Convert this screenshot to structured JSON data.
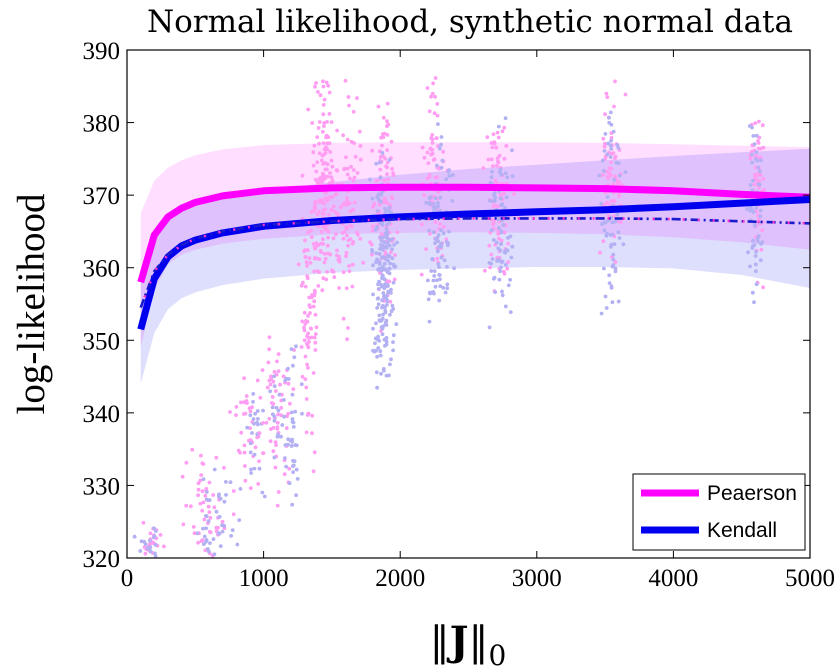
{
  "chart_data": {
    "type": "line",
    "title": "Normal likelihood, synthetic normal data",
    "ylabel": "log-likelihood",
    "xlabel": {
      "norm_symbol": "‖",
      "variable": "J",
      "subscript": "0"
    },
    "xlim": [
      0,
      5000
    ],
    "ylim": [
      320,
      390
    ],
    "xticks": [
      0,
      1000,
      2000,
      3000,
      4000,
      5000
    ],
    "yticks": [
      320,
      330,
      340,
      350,
      360,
      370,
      380,
      390
    ],
    "grid": false,
    "legend_position": "bottom-right",
    "series": [
      {
        "name": "Peaerson",
        "color": "#ff00ff",
        "x": [
          100,
          200,
          300,
          400,
          500,
          700,
          1000,
          1500,
          2000,
          2500,
          3000,
          3500,
          4000,
          4500,
          5000
        ],
        "y": [
          358,
          364.5,
          367,
          368.2,
          369,
          369.9,
          370.6,
          371,
          371.1,
          371.1,
          371,
          370.9,
          370.6,
          370.1,
          369.7
        ],
        "band_upper": [
          367.5,
          372,
          373.8,
          374.8,
          375.5,
          376.3,
          376.9,
          377.2,
          377.3,
          377.3,
          377.3,
          377.2,
          377,
          376.8,
          376.6
        ],
        "band_lower": [
          349,
          357,
          360.5,
          361.8,
          362.5,
          363.3,
          364,
          364.6,
          364.8,
          364.9,
          364.8,
          364.6,
          364.2,
          363.5,
          362.5
        ]
      },
      {
        "name": "Kendall",
        "color": "#0000ee",
        "x": [
          100,
          200,
          300,
          400,
          500,
          700,
          1000,
          1500,
          2000,
          2500,
          3000,
          3500,
          4000,
          4500,
          5000
        ],
        "y": [
          351.5,
          358.5,
          361.5,
          363,
          363.8,
          364.8,
          365.7,
          366.5,
          367,
          367.4,
          367.7,
          368,
          368.4,
          368.9,
          369.4
        ],
        "band_upper": [
          358,
          364,
          366.5,
          367.7,
          368.6,
          369.6,
          370.6,
          371.8,
          372.8,
          373.6,
          374.2,
          374.8,
          375.4,
          375.9,
          376.4
        ],
        "band_lower": [
          344,
          351,
          354.3,
          355.8,
          356.6,
          357.6,
          358.5,
          359.3,
          359.7,
          359.9,
          360.1,
          360.1,
          359.9,
          359,
          357.2
        ]
      },
      {
        "color": "#1a1acd",
        "accent_color": "#ff33cc",
        "style": "dash-dot",
        "x": [
          100,
          200,
          300,
          400,
          500,
          700,
          1000,
          1500,
          2000,
          2500,
          3000,
          3500,
          4000,
          4500,
          5000
        ],
        "y": [
          354.5,
          359.5,
          361.8,
          363.1,
          364,
          365,
          365.9,
          366.4,
          366.7,
          366.8,
          366.8,
          366.8,
          366.7,
          366.4,
          366.1
        ]
      }
    ],
    "scatter_clusters": [
      {
        "color": "#ff9df2",
        "x_center": 180,
        "x_spread": 130,
        "y_center": 321.5,
        "y_spread": 1.5,
        "count": 25
      },
      {
        "color": "#b3b0f3",
        "x_center": 160,
        "x_spread": 110,
        "y_center": 321.5,
        "y_spread": 1.5,
        "count": 20
      },
      {
        "color": "#ff9df2",
        "x_center": 580,
        "x_spread": 150,
        "y_center": 326.5,
        "y_spread": 3.5,
        "count": 55
      },
      {
        "color": "#b3b0f3",
        "x_center": 650,
        "x_spread": 160,
        "y_center": 325,
        "y_spread": 3.5,
        "count": 50
      },
      {
        "color": "#ff9df2",
        "x_center": 880,
        "x_spread": 110,
        "y_center": 337.5,
        "y_spread": 4.5,
        "count": 40
      },
      {
        "color": "#b3b0f3",
        "x_center": 950,
        "x_spread": 80,
        "y_center": 337.5,
        "y_spread": 3.5,
        "count": 25
      },
      {
        "color": "#ff9df2",
        "x_center": 1100,
        "x_spread": 100,
        "y_center": 340,
        "y_spread": 6,
        "count": 60
      },
      {
        "color": "#b3b0f3",
        "x_center": 1180,
        "x_spread": 110,
        "y_center": 338,
        "y_spread": 5,
        "count": 55
      },
      {
        "color": "#ff9df2",
        "x_center": 1330,
        "x_spread": 60,
        "y_center": 352,
        "y_spread": 8,
        "count": 80
      },
      {
        "color": "#ff9df2",
        "x_center": 1440,
        "x_spread": 90,
        "y_center": 370,
        "y_spread": 7,
        "count": 160
      },
      {
        "color": "#ff9df2",
        "x_center": 1620,
        "x_spread": 90,
        "y_center": 368,
        "y_spread": 7,
        "count": 90
      },
      {
        "color": "#ff9df2",
        "x_center": 1880,
        "x_spread": 80,
        "y_center": 369,
        "y_spread": 7,
        "count": 110
      },
      {
        "color": "#b3b0f3",
        "x_center": 1880,
        "x_spread": 80,
        "y_center": 359,
        "y_spread": 7,
        "count": 200
      },
      {
        "color": "#ff9df2",
        "x_center": 2250,
        "x_spread": 80,
        "y_center": 372,
        "y_spread": 6,
        "count": 80
      },
      {
        "color": "#b3b0f3",
        "x_center": 2280,
        "x_spread": 90,
        "y_center": 367,
        "y_spread": 6,
        "count": 90
      },
      {
        "color": "#ff9df2",
        "x_center": 2720,
        "x_spread": 90,
        "y_center": 369,
        "y_spread": 6,
        "count": 80
      },
      {
        "color": "#b3b0f3",
        "x_center": 2720,
        "x_spread": 90,
        "y_center": 365,
        "y_spread": 6,
        "count": 80
      },
      {
        "color": "#ff9df2",
        "x_center": 3550,
        "x_spread": 80,
        "y_center": 372,
        "y_spread": 6,
        "count": 70
      },
      {
        "color": "#b3b0f3",
        "x_center": 3550,
        "x_spread": 80,
        "y_center": 368,
        "y_spread": 6,
        "count": 70
      },
      {
        "color": "#ff9df2",
        "x_center": 4620,
        "x_spread": 50,
        "y_center": 370,
        "y_spread": 6,
        "count": 60
      },
      {
        "color": "#b3b0f3",
        "x_center": 4600,
        "x_spread": 50,
        "y_center": 368,
        "y_spread": 6,
        "count": 60
      }
    ]
  }
}
